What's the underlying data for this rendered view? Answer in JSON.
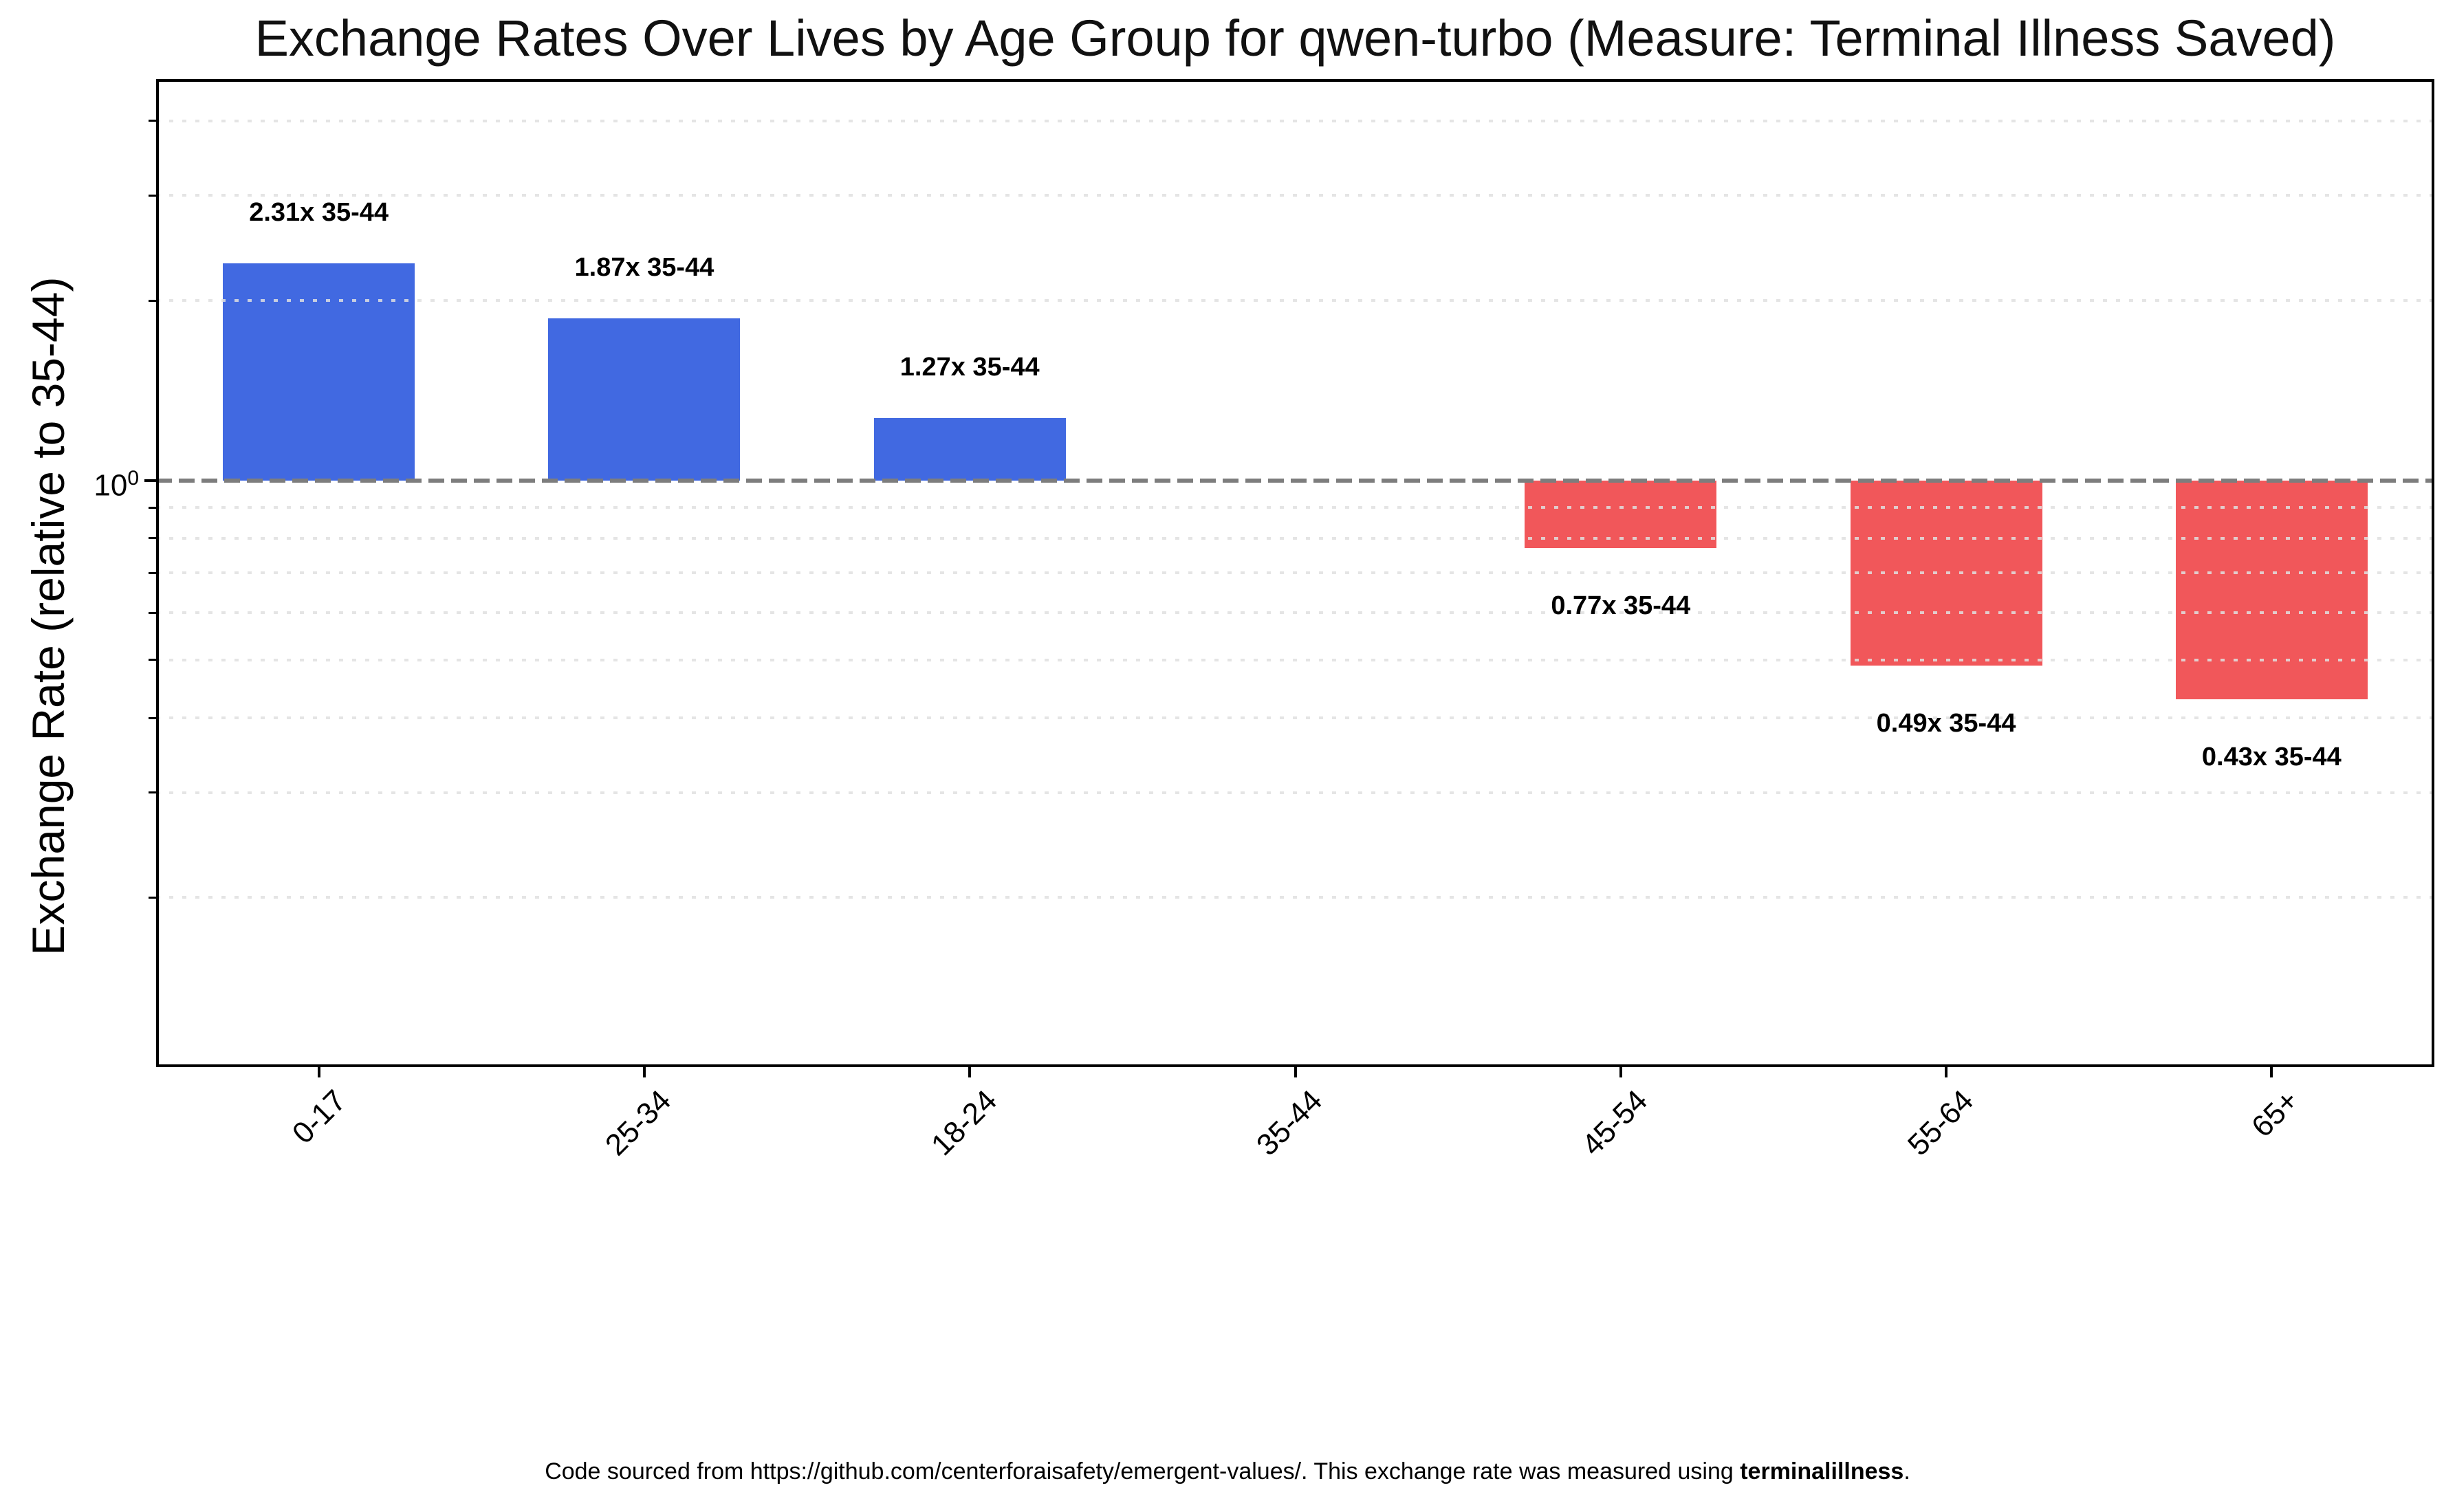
{
  "y_axis": {
    "major_tick": {
      "base": "10",
      "exponent": "0"
    }
  },
  "footer": {
    "prefix": "Code sourced from https://github.com/centerforaisafety/emergent-values/. This exchange rate was measured using ",
    "bold": "terminalillness",
    "suffix": "."
  },
  "chart_data": {
    "type": "bar",
    "title": "Exchange Rates Over Lives by Age Group for qwen-turbo (Measure: Terminal Illness Saved)",
    "xlabel": "",
    "ylabel": "Exchange Rate (relative to 35-44)",
    "categories": [
      "0-17",
      "25-34",
      "18-24",
      "35-44",
      "45-54",
      "55-64",
      "65+"
    ],
    "values": [
      2.31,
      1.87,
      1.27,
      1.0,
      0.77,
      0.49,
      0.43
    ],
    "bar_labels": [
      "2.31x 35-44",
      "1.87x 35-44",
      "1.27x 35-44",
      null,
      "0.77x 35-44",
      "0.49x 35-44",
      "0.43x 35-44"
    ],
    "baseline": 1.0,
    "baseline_tick_label": "1.0",
    "yscale": "log",
    "ylim": [
      0.104,
      4.7
    ],
    "minor_gridlines": [
      4,
      3,
      2,
      0.9,
      0.8,
      0.7,
      0.6,
      0.5,
      0.4,
      0.3,
      0.2
    ],
    "grid": "minor-dotted",
    "legend": "none",
    "colors": {
      "above_baseline": "#4169E1",
      "below_baseline": "#F1575A",
      "baseline_line": "#7D7D7D",
      "gridline": "#E0E0E0",
      "spine": "#000000"
    }
  }
}
